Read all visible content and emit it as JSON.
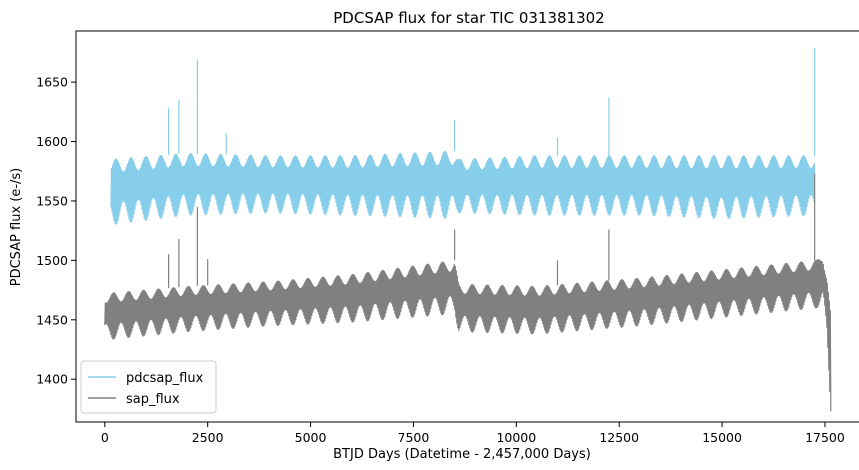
{
  "chart_data": {
    "type": "line",
    "title": "PDCSAP flux for star TIC 031381302",
    "xlabel": "BTJD Days (Datetime - 2,457,000 Days)",
    "ylabel": "PDCSAP flux (e-/s)",
    "xlim": [
      -700,
      18400
    ],
    "ylim": [
      1364,
      1693
    ],
    "xticks": [
      0,
      2500,
      5000,
      7500,
      10000,
      12500,
      15000,
      17500
    ],
    "xtick_labels": [
      "0",
      "2500",
      "5000",
      "7500",
      "10000",
      "12500",
      "15000",
      "17500"
    ],
    "yticks": [
      1400,
      1450,
      1500,
      1550,
      1600,
      1650
    ],
    "ytick_labels": [
      "1400",
      "1450",
      "1500",
      "1550",
      "1600",
      "1650"
    ],
    "grid": false,
    "legend_position": "lower-left",
    "series": [
      {
        "name": "pdcsap_flux",
        "color": "#87ceeb",
        "envelope": [
          {
            "x": 150,
            "low": 1530,
            "high": 1585
          },
          {
            "x": 2000,
            "low": 1538,
            "high": 1590
          },
          {
            "x": 4000,
            "low": 1540,
            "high": 1588
          },
          {
            "x": 6000,
            "low": 1538,
            "high": 1588
          },
          {
            "x": 8500,
            "low": 1535,
            "high": 1592
          },
          {
            "x": 8600,
            "low": 1540,
            "high": 1585
          },
          {
            "x": 10500,
            "low": 1538,
            "high": 1588
          },
          {
            "x": 13000,
            "low": 1538,
            "high": 1588
          },
          {
            "x": 15000,
            "low": 1535,
            "high": 1588
          },
          {
            "x": 17250,
            "low": 1538,
            "high": 1588
          }
        ],
        "spikes": [
          {
            "x": 1550,
            "y": 1628
          },
          {
            "x": 1800,
            "y": 1635
          },
          {
            "x": 2250,
            "y": 1669
          },
          {
            "x": 2950,
            "y": 1607
          },
          {
            "x": 8500,
            "y": 1618
          },
          {
            "x": 11000,
            "y": 1603
          },
          {
            "x": 12250,
            "y": 1637
          },
          {
            "x": 17250,
            "y": 1679
          }
        ]
      },
      {
        "name": "sap_flux",
        "color": "#808080",
        "envelope": [
          {
            "x": 0,
            "low": 1433,
            "high": 1472
          },
          {
            "x": 2000,
            "low": 1440,
            "high": 1478
          },
          {
            "x": 4000,
            "low": 1445,
            "high": 1482
          },
          {
            "x": 6000,
            "low": 1448,
            "high": 1488
          },
          {
            "x": 8500,
            "low": 1455,
            "high": 1500
          },
          {
            "x": 8600,
            "low": 1440,
            "high": 1480
          },
          {
            "x": 10500,
            "low": 1438,
            "high": 1478
          },
          {
            "x": 13000,
            "low": 1445,
            "high": 1485
          },
          {
            "x": 15000,
            "low": 1452,
            "high": 1492
          },
          {
            "x": 17300,
            "low": 1460,
            "high": 1500
          },
          {
            "x": 17450,
            "low": 1455,
            "high": 1510
          },
          {
            "x": 17550,
            "low": 1430,
            "high": 1490
          },
          {
            "x": 17650,
            "low": 1368,
            "high": 1450
          }
        ],
        "spikes": [
          {
            "x": 1550,
            "y": 1505
          },
          {
            "x": 1800,
            "y": 1518
          },
          {
            "x": 2250,
            "y": 1545
          },
          {
            "x": 2500,
            "y": 1501
          },
          {
            "x": 8500,
            "y": 1526
          },
          {
            "x": 11000,
            "y": 1500
          },
          {
            "x": 12250,
            "y": 1526
          },
          {
            "x": 17250,
            "y": 1573
          }
        ]
      }
    ]
  }
}
